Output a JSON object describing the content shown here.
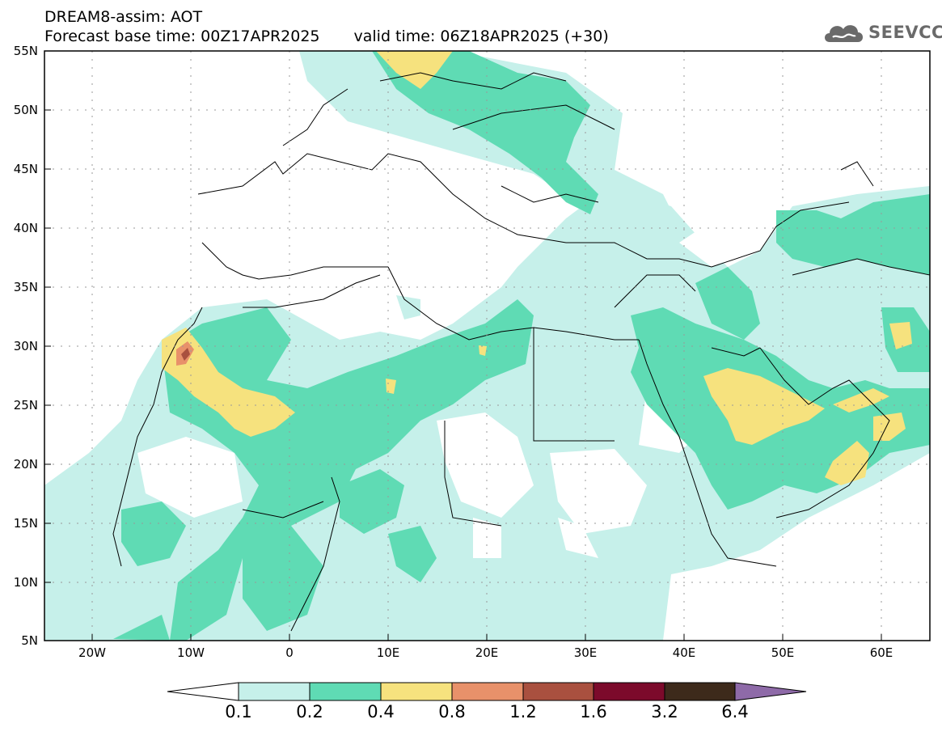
{
  "header": {
    "line1": "DREAM8-assim: AOT",
    "base_time": "Forecast base time: 00Z17APR2025",
    "valid_time": "valid time: 06Z18APR2025 (+30)"
  },
  "logo": {
    "text": "SEEVCCC",
    "icon": "cloud-icon"
  },
  "map": {
    "lon_ticks": [
      "20W",
      "10W",
      "0",
      "10E",
      "20E",
      "30E",
      "40E",
      "50E",
      "60E"
    ],
    "lat_ticks": [
      "55N",
      "50N",
      "45N",
      "40N",
      "35N",
      "30N",
      "25N",
      "20N",
      "15N",
      "10N",
      "5N"
    ],
    "extent": {
      "lon_min": -25,
      "lon_max": 65,
      "lat_min": 5,
      "lat_max": 55
    }
  },
  "legend": {
    "levels": [
      "0.1",
      "0.2",
      "0.4",
      "0.8",
      "1.2",
      "1.6",
      "3.2",
      "6.4"
    ],
    "colors": [
      "#c6f0ea",
      "#5fdbb4",
      "#f6e27e",
      "#e8916a",
      "#a9503f",
      "#7c0a2b",
      "#3d2a1b"
    ],
    "under_color": "#ffffff",
    "over_color": "#8e6aa8"
  }
}
